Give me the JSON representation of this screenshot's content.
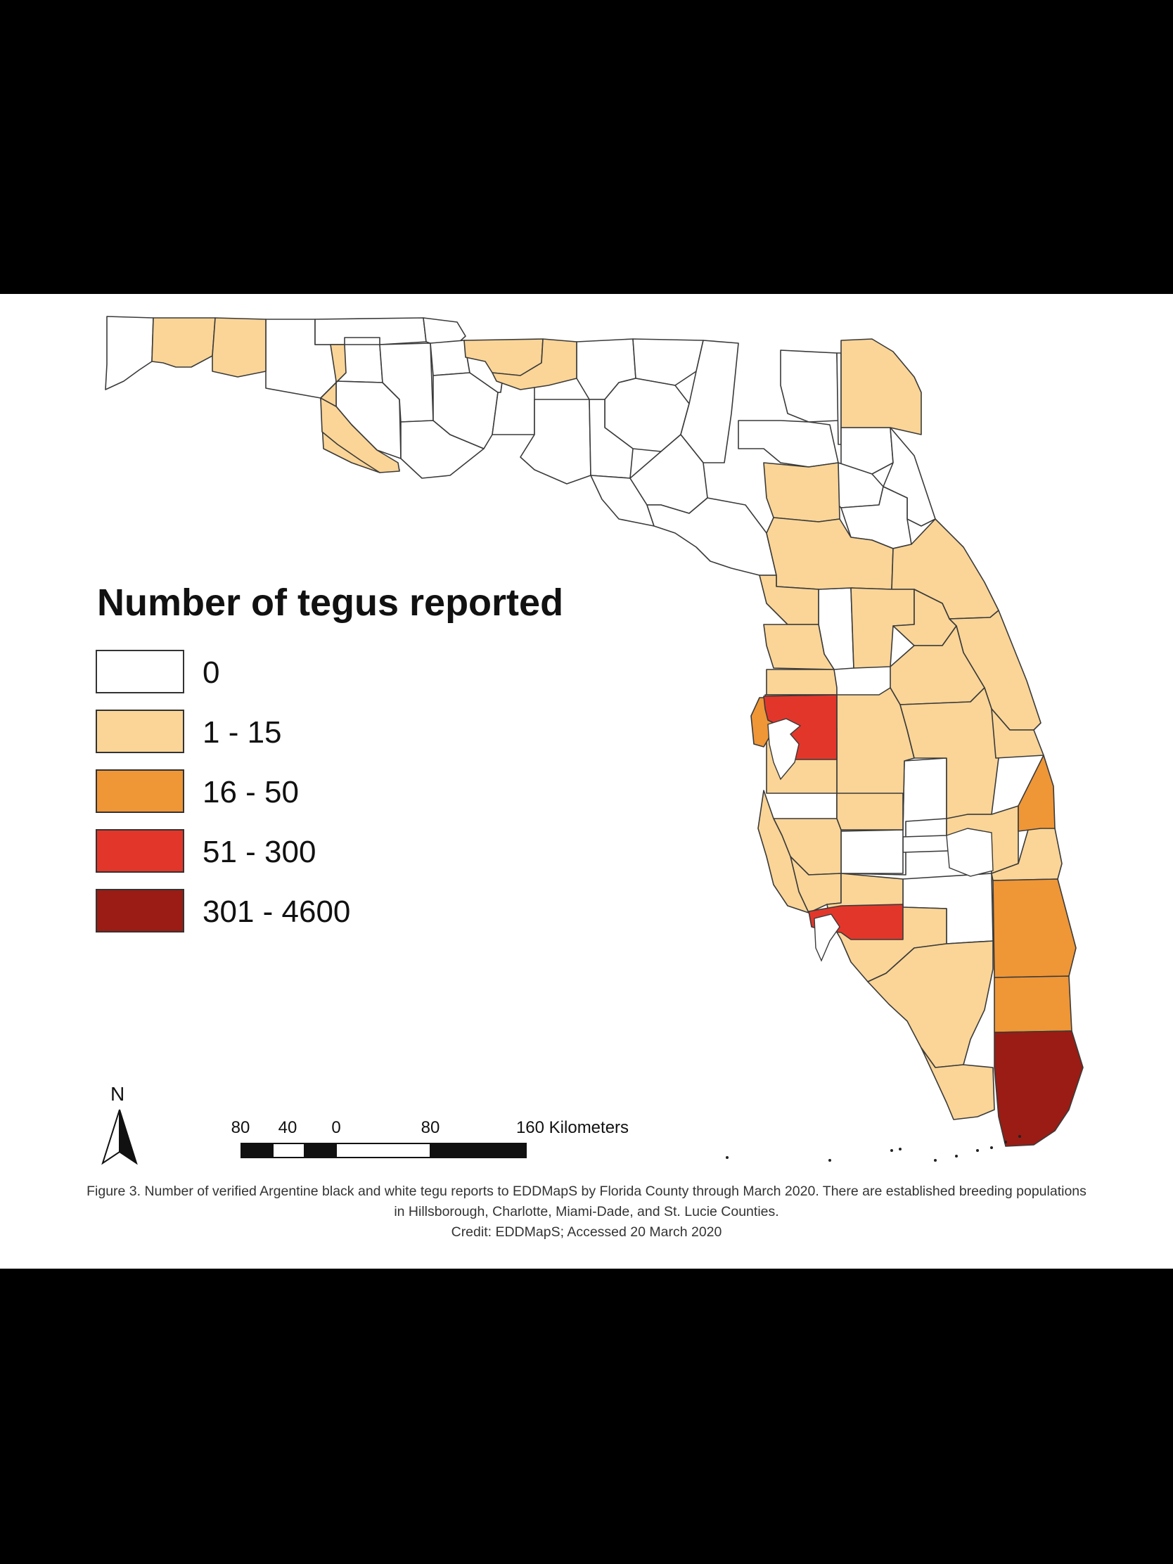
{
  "legend": {
    "title": "Number of tegus reported",
    "classes": [
      {
        "label": "0",
        "color": "#ffffff"
      },
      {
        "label": "1 - 15",
        "color": "#fad597"
      },
      {
        "label": "16 - 50",
        "color": "#ef9637"
      },
      {
        "label": "51 - 300",
        "color": "#e3362a"
      },
      {
        "label": "301 - 4600",
        "color": "#9a1c14"
      }
    ]
  },
  "north_arrow": {
    "label": "N",
    "icon": "north-arrow-icon"
  },
  "scale_bar": {
    "ticks": [
      "80",
      "40",
      "0",
      "80",
      "160 Kilometers"
    ]
  },
  "caption": {
    "text": "Figure 3. Number of verified Argentine black and white tegu reports to EDDMapS by Florida County through March 2020. There are established breeding populations in Hillsborough, Charlotte, Miami-Dade, and St. Lucie Counties.",
    "credit": "Credit: EDDMapS; Accessed 20 March 2020"
  }
}
